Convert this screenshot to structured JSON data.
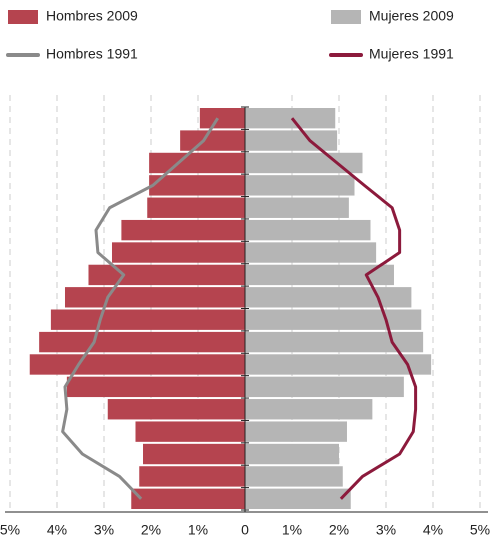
{
  "chart_data": {
    "type": "pyramid",
    "categories": [
      null,
      null,
      null,
      null,
      null,
      null,
      null,
      null,
      null,
      null,
      null,
      null,
      null,
      null,
      null,
      null,
      null,
      null
    ],
    "series": [
      {
        "name": "Hombres 2009",
        "color": "#b5444f",
        "side": "left",
        "kind": "bar",
        "values": [
          0.96,
          1.38,
          2.04,
          2.04,
          2.08,
          2.63,
          2.83,
          3.33,
          3.83,
          4.13,
          4.38,
          4.58,
          3.79,
          2.92,
          2.33,
          2.17,
          2.25,
          2.42
        ]
      },
      {
        "name": "Mujeres 2009",
        "color": "#b5b5b5",
        "side": "right",
        "kind": "bar",
        "values": [
          1.92,
          1.96,
          2.5,
          2.33,
          2.21,
          2.67,
          2.79,
          3.17,
          3.54,
          3.75,
          3.79,
          3.96,
          3.38,
          2.71,
          2.17,
          2.0,
          2.08,
          2.25
        ]
      },
      {
        "name": "Hombres 1991",
        "color": "#8a8a8a",
        "side": "left",
        "kind": "line",
        "values": [
          0.58,
          0.88,
          1.42,
          1.96,
          2.88,
          3.17,
          3.13,
          2.58,
          2.92,
          3.08,
          3.21,
          3.54,
          3.83,
          3.79,
          3.88,
          3.46,
          2.67,
          2.21
        ]
      },
      {
        "name": "Mujeres 1991",
        "color": "#8c1a3c",
        "side": "right",
        "kind": "line",
        "values": [
          1.0,
          1.38,
          1.96,
          2.54,
          3.13,
          3.29,
          3.29,
          2.58,
          2.83,
          3.0,
          3.13,
          3.46,
          3.63,
          3.63,
          3.58,
          3.29,
          2.5,
          2.04
        ]
      }
    ],
    "xlim": [
      -5,
      5
    ],
    "xticks": [
      {
        "value": -5,
        "label": "5%"
      },
      {
        "value": -4,
        "label": "4%"
      },
      {
        "value": -3,
        "label": "3%"
      },
      {
        "value": -2,
        "label": "2%"
      },
      {
        "value": -1,
        "label": "1%"
      },
      0,
      {
        "value": 1,
        "label": "1%"
      },
      {
        "value": 2,
        "label": "2%"
      },
      {
        "value": 3,
        "label": "3%"
      },
      {
        "value": 4,
        "label": "4%"
      },
      {
        "value": 5,
        "label": "5%"
      }
    ],
    "grid": true
  }
}
